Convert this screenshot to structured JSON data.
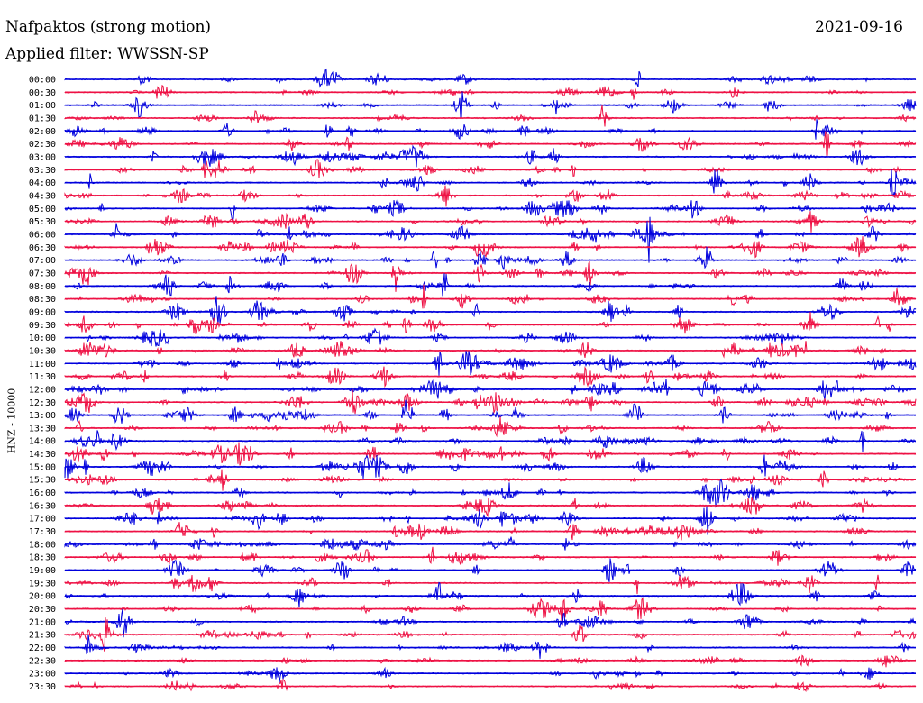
{
  "header": {
    "title": "Nafpaktos (strong motion)",
    "date": "2021-09-16",
    "filter": "Applied filter: WWSSN-SP"
  },
  "channel_label": "HNZ - 10000",
  "colors": {
    "even_rows": "#0000dd",
    "odd_rows": "#ee1144",
    "text": "#000000",
    "background": "#ffffff"
  },
  "chart_data": {
    "type": "line",
    "title": "Nafpaktos (strong motion)",
    "subtitle": "Applied filter: WWSSN-SP",
    "ylabel": "HNZ - 10000",
    "xlabel": "",
    "grid": false,
    "legend": "none",
    "row_color_pattern": [
      "blue",
      "red"
    ],
    "categories": [
      "00:00",
      "00:30",
      "01:00",
      "01:30",
      "02:00",
      "02:30",
      "03:00",
      "03:30",
      "04:00",
      "04:30",
      "05:00",
      "05:30",
      "06:00",
      "06:30",
      "07:00",
      "07:30",
      "08:00",
      "08:30",
      "09:00",
      "09:30",
      "10:00",
      "10:30",
      "11:00",
      "11:30",
      "12:00",
      "12:30",
      "13:00",
      "13:30",
      "14:00",
      "14:30",
      "15:00",
      "15:30",
      "16:00",
      "16:30",
      "17:00",
      "17:30",
      "18:00",
      "18:30",
      "19:00",
      "19:30",
      "20:00",
      "20:30",
      "21:00",
      "21:30",
      "22:00",
      "22:30",
      "23:00",
      "23:30"
    ]
  }
}
